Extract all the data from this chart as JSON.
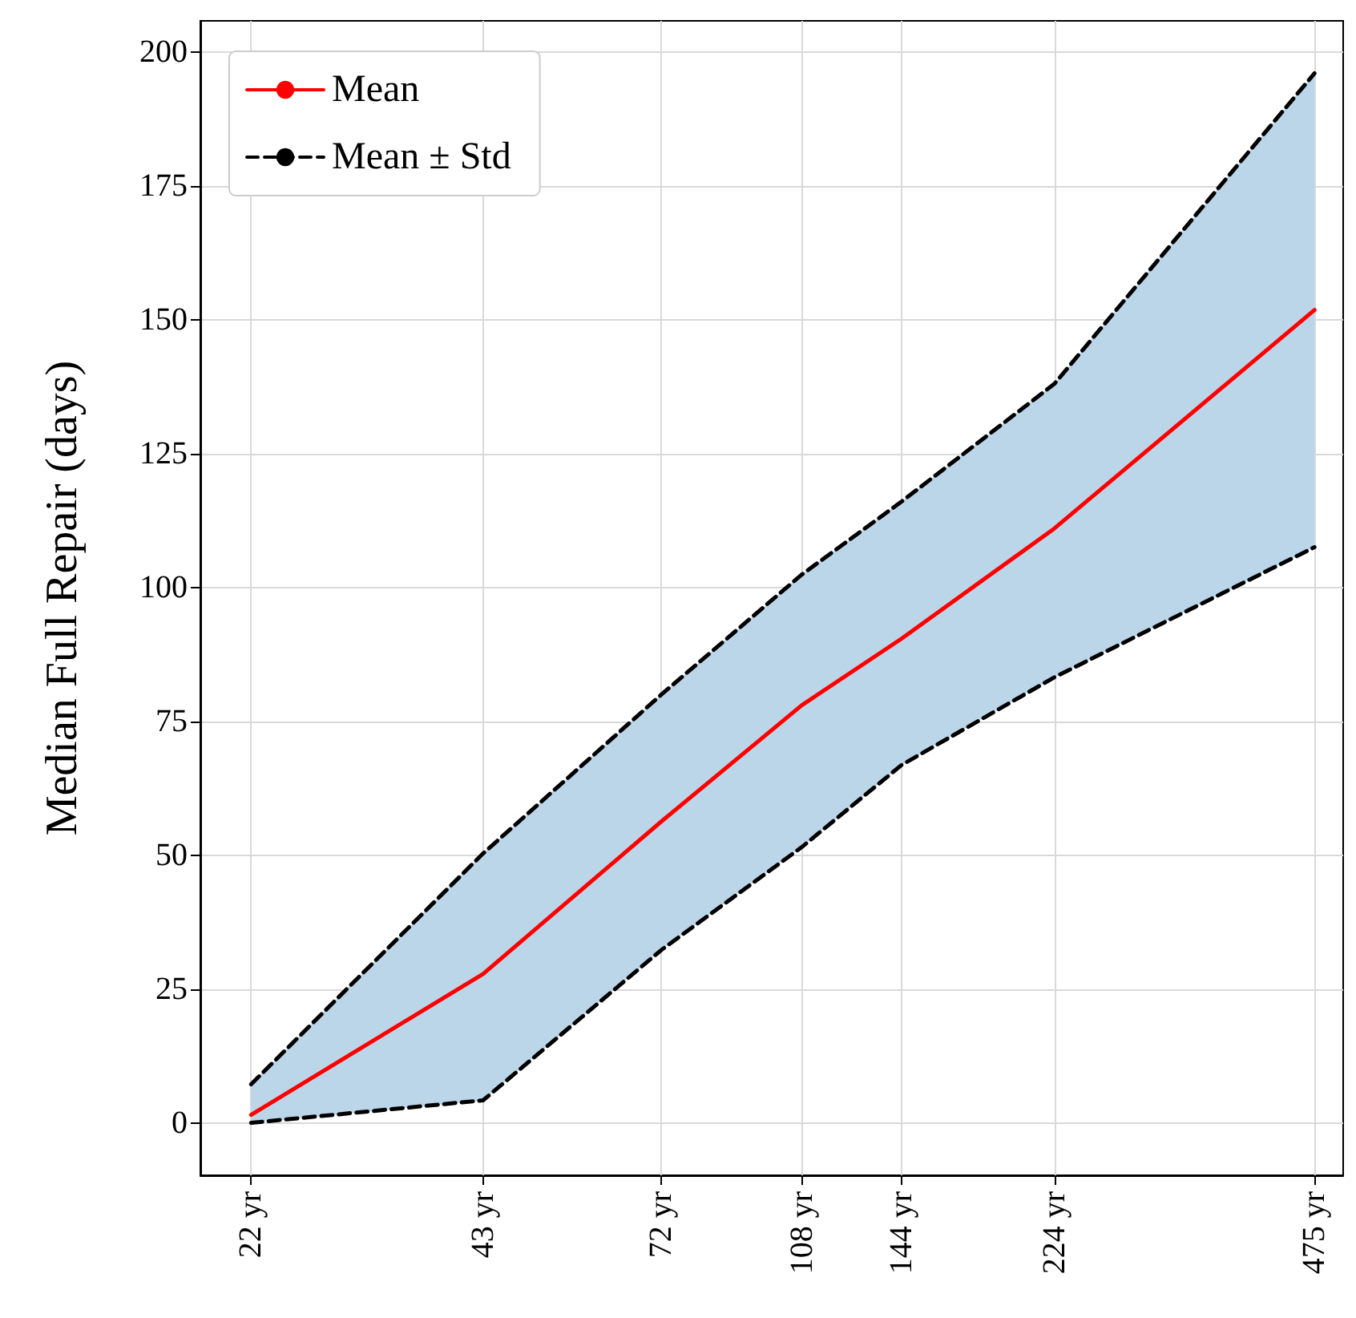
{
  "chart_data": {
    "type": "line",
    "ylabel": "Median Full Repair (days)",
    "log": "x",
    "grid": true,
    "legend": "top left",
    "x": [
      22,
      43,
      72,
      108,
      144,
      224,
      475
    ],
    "xlim": [
      19,
      516
    ],
    "xticks": [
      {
        "value": 22,
        "label": "22 yr"
      },
      {
        "value": 43,
        "label": "43 yr"
      },
      {
        "value": 72,
        "label": "72 yr"
      },
      {
        "value": 108,
        "label": "108 yr"
      },
      {
        "value": 144,
        "label": "144 yr"
      },
      {
        "value": 224,
        "label": "224 yr"
      },
      {
        "value": 475,
        "label": "475 yr"
      }
    ],
    "ylim": [
      -9.8,
      205.8
    ],
    "yticks": [
      0,
      25,
      50,
      75,
      100,
      125,
      150,
      175,
      200
    ],
    "series": [
      {
        "name": "Mean",
        "color": "#ff0000",
        "line_style": "solid",
        "values": [
          1.5,
          27.8,
          56.3,
          78,
          90.4,
          111,
          151.8
        ],
        "lower": [
          0,
          4.2,
          32.3,
          51.5,
          66.8,
          83.2,
          107.5
        ],
        "upper": [
          7.2,
          50.3,
          80,
          102.4,
          116,
          138,
          196
        ]
      },
      {
        "name": "Mean ± Std",
        "color": "#000000",
        "line_style": "dashed",
        "values": [
          7.2,
          50.3,
          80,
          102.4,
          116,
          138,
          196
        ]
      },
      {
        "color": "#000000",
        "line_style": "dashed",
        "values": [
          0,
          4.2,
          32.3,
          51.5,
          66.8,
          83.2,
          107.5
        ]
      }
    ]
  }
}
